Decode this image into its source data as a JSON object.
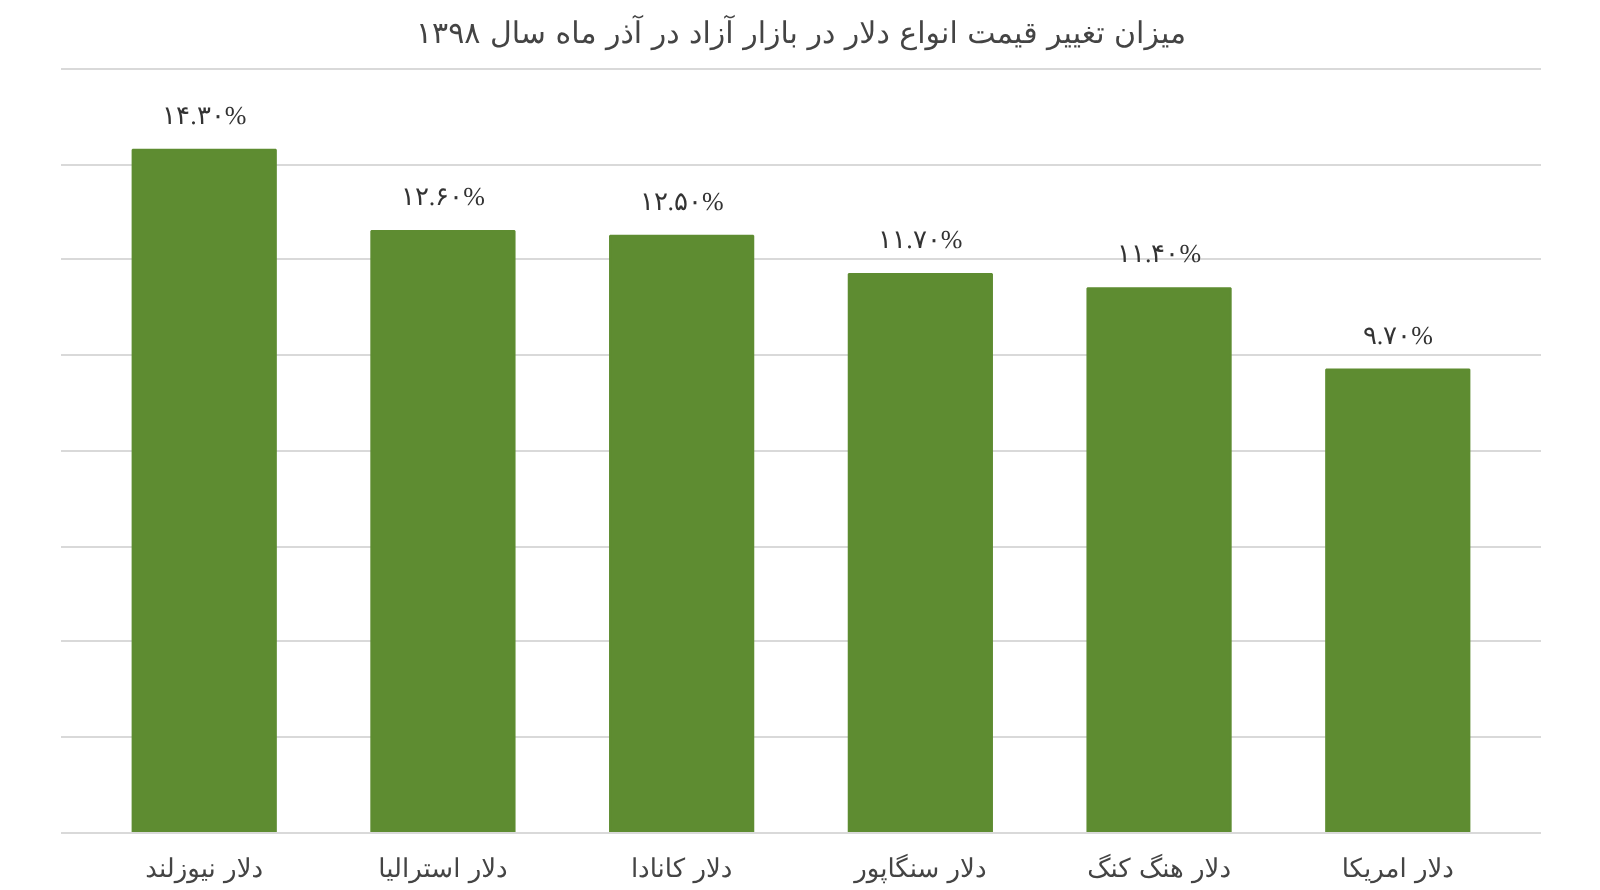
{
  "chart_data": {
    "type": "bar",
    "title": "میزان تغییر قیمت انواع دلار در بازار آزاد در آذر ماه سال ۱۳۹۸",
    "categories": [
      "دلار نیوزلند",
      "دلار استرالیا",
      "دلار کانادا",
      "دلار سنگاپور",
      "دلار هنگ کنگ",
      "دلار امریکا"
    ],
    "values": [
      14.3,
      12.6,
      12.5,
      11.7,
      11.4,
      9.7
    ],
    "value_labels": [
      "۱۴.۳۰%",
      "۱۲.۶۰%",
      "۱۲.۵۰%",
      "۱۱.۷۰%",
      "۱۱.۴۰%",
      "۹.۷۰%"
    ],
    "color": "#5e8c31",
    "grid": "y",
    "tick_labels": "x"
  }
}
